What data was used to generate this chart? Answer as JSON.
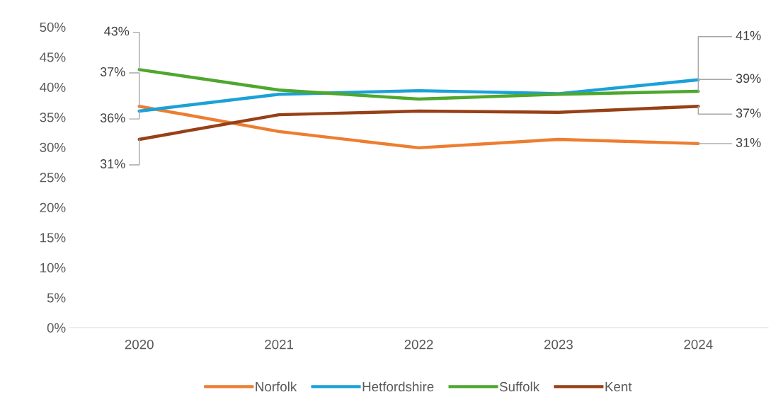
{
  "chart_data": {
    "type": "line",
    "categories": [
      "2020",
      "2021",
      "2022",
      "2023",
      "2024"
    ],
    "ylim": [
      0,
      50
    ],
    "yticks": [
      {
        "value": 0,
        "label": "0%"
      },
      {
        "value": 5,
        "label": "5%"
      },
      {
        "value": 10,
        "label": "10%"
      },
      {
        "value": 15,
        "label": "15%"
      },
      {
        "value": 20,
        "label": "20%"
      },
      {
        "value": 25,
        "label": "25%"
      },
      {
        "value": 30,
        "label": "30%"
      },
      {
        "value": 35,
        "label": "35%"
      },
      {
        "value": 40,
        "label": "40%"
      },
      {
        "value": 45,
        "label": "45%"
      },
      {
        "value": 50,
        "label": "50%"
      }
    ],
    "grid": false,
    "legend": "bottom",
    "marker": "none",
    "line_style": "solid",
    "series": [
      {
        "name": "Norfolk",
        "color": "#ed7d31",
        "values": [
          36.8,
          32.6,
          29.9,
          31.3,
          30.6
        ],
        "value_labels": [
          "37%",
          null,
          null,
          null,
          "31%"
        ]
      },
      {
        "name": "Hetfordshire",
        "color": "#1ba1d8",
        "values": [
          36.0,
          38.8,
          39.4,
          38.9,
          41.2
        ],
        "value_labels": [
          "36%",
          null,
          null,
          null,
          "41%"
        ]
      },
      {
        "name": "Suffolk",
        "color": "#4ea72e",
        "values": [
          42.9,
          39.5,
          38.0,
          38.8,
          39.3
        ],
        "value_labels": [
          "43%",
          null,
          null,
          null,
          "39%"
        ]
      },
      {
        "name": "Kent",
        "color": "#974016",
        "values": [
          31.3,
          35.4,
          36.0,
          35.8,
          36.8
        ],
        "value_labels": [
          "31%",
          null,
          null,
          null,
          "37%"
        ]
      }
    ]
  }
}
